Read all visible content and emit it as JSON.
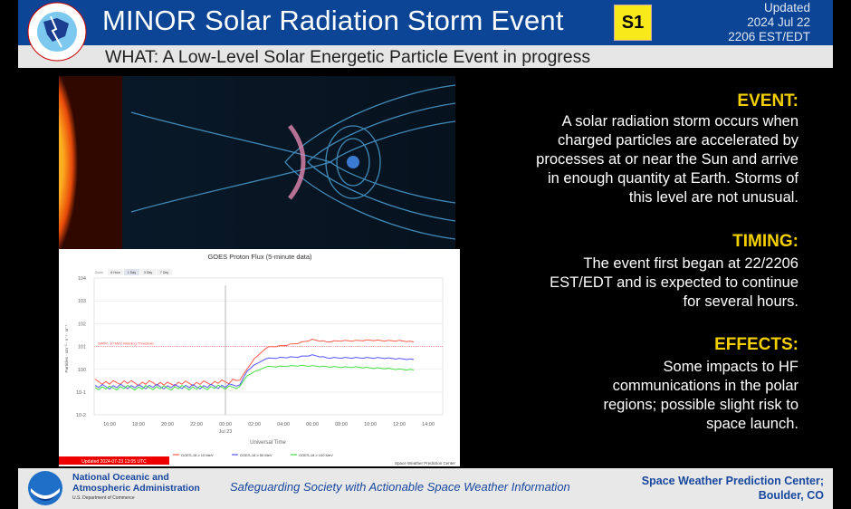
{
  "header": {
    "title": "MINOR Solar Radiation Storm Event",
    "scale_badge": "S1",
    "updated_label": "Updated",
    "updated_date": "2024 Jul 22",
    "updated_time": "2206 EST/EDT",
    "what": "WHAT: A Low-Level Solar Energetic Particle Event in progress",
    "logo_text": "NATIONAL WEATHER SERVICE"
  },
  "sections": [
    {
      "heading": "EVENT:",
      "lines": [
        "A solar radiation storm occurs when",
        "charged particles are accelerated by",
        "processes at or near the Sun and arrive",
        "in enough quantity at Earth. Storms of",
        "this level are not unusual."
      ]
    },
    {
      "heading": "TIMING:",
      "lines": [
        "The event first began at 22/2206",
        "EST/EDT and is expected to continue",
        "for several hours."
      ]
    },
    {
      "heading": "EFFECTS:",
      "lines": [
        "Some impacts to HF",
        "communications in the polar",
        "regions; possible slight risk to",
        "space launch."
      ]
    }
  ],
  "footer": {
    "org_line1": "National Oceanic and",
    "org_line2": "Atmospheric Administration",
    "dept": "U.S. Department of Commerce",
    "logo_text": "NOAA",
    "tagline": "Safeguarding Society with Actionable Space Weather Information",
    "center_line1": "Space Weather Prediction Center;",
    "center_line2": "Boulder, CO"
  },
  "colors": {
    "header_blue": "#0c4596",
    "badge_yellow": "#f7e91a",
    "heading_yellow": "#f5d000",
    "footer_blue": "#17479e"
  },
  "chart_data": {
    "type": "line",
    "title": "GOES Proton Flux (5-minute data)",
    "zoom_label": "Zoom",
    "zoom_options": [
      "6 Hour",
      "1 Day",
      "3 Day",
      "7 Day"
    ],
    "zoom_selected": "1 Day",
    "xlabel": "Universal Time",
    "ylabel": "Particles · cm⁻² · s⁻¹ · sr⁻¹",
    "yscale": "log",
    "ylim": [
      0.01,
      10000
    ],
    "ytick_labels": [
      "104",
      "103",
      "102",
      "101",
      "100",
      "10-1",
      "10-2"
    ],
    "xtick_labels": [
      "16:00",
      "18:00",
      "20:00",
      "22:00",
      "00:00",
      "02:00",
      "04:00",
      "06:00",
      "08:00",
      "10:00",
      "12:00",
      "14:00"
    ],
    "xtick_sublabel": "Jul 23",
    "grid": true,
    "threshold": {
      "label": "SWPC 10 MeV Warning Threshold",
      "value": 10,
      "color": "#ff4444"
    },
    "day_marker": "00:00",
    "x": [
      "15:00",
      "16:00",
      "17:00",
      "18:00",
      "19:00",
      "20:00",
      "21:00",
      "22:00",
      "23:00",
      "00:00",
      "00:30",
      "01:00",
      "01:30",
      "02:00",
      "02:30",
      "03:00",
      "04:00",
      "05:00",
      "06:00",
      "07:00",
      "08:00",
      "09:00",
      "10:00",
      "11:00",
      "12:00",
      "13:00"
    ],
    "series": [
      {
        "name": "GOES-18 ≥ 10 MeV",
        "color": "#ff5a4a",
        "values": [
          0.3,
          0.25,
          0.28,
          0.24,
          0.26,
          0.22,
          0.25,
          0.24,
          0.26,
          0.28,
          0.3,
          0.35,
          1.0,
          3.0,
          6.0,
          9.5,
          11,
          14,
          20,
          16,
          18,
          18,
          19,
          18,
          18,
          16
        ]
      },
      {
        "name": "GOES-18 ≥ 50 MeV",
        "color": "#5555ff",
        "values": [
          0.18,
          0.17,
          0.18,
          0.17,
          0.18,
          0.17,
          0.18,
          0.17,
          0.18,
          0.18,
          0.19,
          0.22,
          0.8,
          1.6,
          2.4,
          3.0,
          3.3,
          3.5,
          4.2,
          3.2,
          3.2,
          3.2,
          3.2,
          3.1,
          2.9,
          2.7
        ]
      },
      {
        "name": "GOES-18 ≥ 100 MeV",
        "color": "#44dd44",
        "values": [
          0.16,
          0.15,
          0.16,
          0.15,
          0.16,
          0.15,
          0.16,
          0.15,
          0.16,
          0.17,
          0.17,
          0.19,
          0.5,
          0.8,
          1.1,
          1.3,
          1.35,
          1.45,
          1.4,
          1.3,
          1.25,
          1.25,
          1.15,
          1.1,
          1.0,
          0.95
        ]
      }
    ],
    "legend_placement": "bottom",
    "credit": "Space Weather Prediction Center",
    "updated_stamp": "Updated 2024-07-23 13:05 UTC"
  }
}
